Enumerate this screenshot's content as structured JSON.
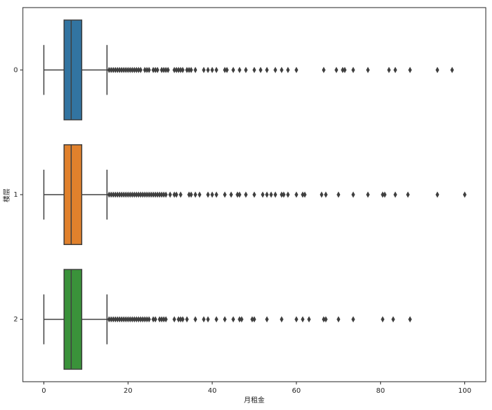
{
  "chart_data": {
    "type": "box",
    "x_label": "月租金",
    "y_label": "楼层",
    "categories": [
      "0",
      "1",
      "2"
    ],
    "xlim": [
      -5,
      105
    ],
    "xticks": [
      0,
      20,
      40,
      60,
      80,
      100
    ],
    "boxes": [
      {
        "color": "#3274a1",
        "whislo": 0,
        "q1": 4.8,
        "med": 6.5,
        "q3": 9,
        "whishi": 15,
        "fliers": [
          15.5,
          16,
          16.5,
          17,
          17.5,
          18,
          18.5,
          19,
          19.5,
          20,
          20.5,
          21,
          21.5,
          22,
          22.5,
          23,
          24,
          24.5,
          25,
          26,
          26.5,
          27,
          28,
          28.5,
          29,
          29.5,
          31,
          31.5,
          32,
          32.5,
          33,
          34,
          34.5,
          35,
          36,
          38,
          39,
          40,
          41,
          43,
          43.5,
          45,
          46.5,
          48,
          50,
          51.5,
          53,
          55,
          56.5,
          58,
          60,
          66.5,
          69.5,
          71,
          71.5,
          73.5,
          77,
          82,
          83.5,
          87,
          93.5,
          97
        ]
      },
      {
        "color": "#e1812c",
        "whislo": 0,
        "q1": 4.8,
        "med": 6.5,
        "q3": 9,
        "whishi": 15,
        "fliers": [
          15.5,
          16,
          16.5,
          17,
          17.5,
          18,
          18.5,
          19,
          19.5,
          20,
          20.5,
          21,
          21.5,
          22,
          22.5,
          23,
          23.5,
          24,
          24.5,
          25,
          25.5,
          26,
          26.5,
          27,
          27.5,
          28,
          28.5,
          29,
          30,
          31,
          31.5,
          32.5,
          34.5,
          35,
          36,
          37,
          39,
          40,
          41,
          43,
          44.5,
          46,
          46.5,
          48,
          50,
          52,
          53,
          54,
          55,
          56.5,
          57,
          58,
          60,
          61.5,
          62,
          66,
          67,
          70,
          73.5,
          77,
          80.5,
          81,
          83.5,
          86.5,
          93.5,
          100
        ]
      },
      {
        "color": "#3a923a",
        "whislo": 0,
        "q1": 4.8,
        "med": 6.5,
        "q3": 9,
        "whishi": 15,
        "fliers": [
          15.5,
          16,
          16.5,
          17,
          17.5,
          18,
          18.5,
          19,
          19.5,
          20,
          20.5,
          21,
          21.5,
          22,
          22.5,
          23,
          23.5,
          24,
          24.5,
          25,
          26,
          26.5,
          27.5,
          28,
          28.5,
          29,
          31,
          32,
          32.5,
          33,
          34,
          36,
          38,
          39,
          41,
          43,
          45,
          46.5,
          47,
          49.5,
          50,
          53,
          56.5,
          60,
          61.5,
          63,
          66.5,
          67,
          70,
          73.5,
          80.5,
          83,
          87
        ]
      }
    ]
  }
}
